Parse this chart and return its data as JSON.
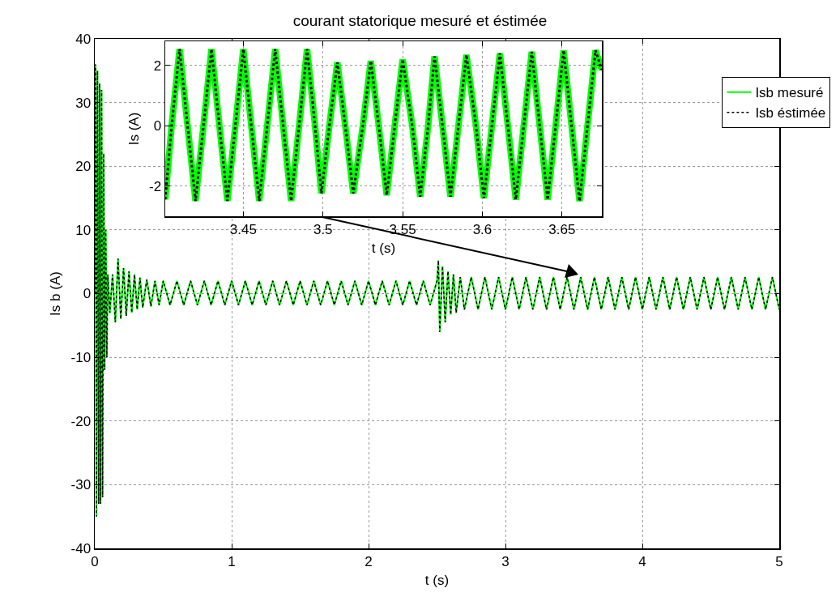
{
  "chart_data": [
    {
      "type": "line",
      "title": "courant statorique mesuré et éstimée",
      "xlabel": "t (s)",
      "ylabel": "Is b (A)",
      "x": [
        0,
        0.005,
        0.012,
        0.02,
        0.028,
        0.035,
        0.042,
        0.05,
        0.057,
        0.065,
        0.072,
        0.08,
        0.088,
        0.095,
        0.11,
        0.13,
        0.15,
        0.17,
        0.19,
        0.21,
        0.23,
        0.25,
        0.27,
        0.29,
        0.31,
        0.33,
        0.35,
        0.38,
        0.41,
        0.44,
        0.47,
        0.5,
        0.55,
        0.6,
        0.65,
        0.7,
        0.75,
        0.8,
        0.85,
        0.9,
        0.95,
        1,
        1.05,
        1.1,
        1.15,
        1.2,
        1.25,
        1.3,
        1.35,
        1.4,
        1.45,
        1.5,
        1.55,
        1.6,
        1.65,
        1.7,
        1.75,
        1.8,
        1.85,
        1.9,
        1.95,
        2,
        2.05,
        2.1,
        2.15,
        2.2,
        2.25,
        2.3,
        2.35,
        2.4,
        2.45,
        2.5,
        2.51,
        2.52,
        2.54,
        2.56,
        2.58,
        2.6,
        2.62,
        2.64,
        2.67,
        2.7,
        2.75,
        2.8,
        2.85,
        2.9,
        2.95,
        3,
        3.05,
        3.1,
        3.15,
        3.2,
        3.25,
        3.3,
        3.35,
        3.4,
        3.45,
        3.5,
        3.55,
        3.6,
        3.65,
        3.7,
        3.75,
        3.8,
        3.85,
        3.9,
        3.95,
        4,
        4.05,
        4.1,
        4.15,
        4.2,
        4.25,
        4.3,
        4.35,
        4.4,
        4.45,
        4.5,
        4.55,
        4.6,
        4.65,
        4.7,
        4.75,
        4.8,
        4.85,
        4.9,
        4.95,
        5
      ],
      "series": [
        {
          "name": "Isb mesuré",
          "color": "#00ff00",
          "line_style": "solid",
          "values": [
            0,
            36,
            -35,
            35,
            -33,
            33,
            -33,
            32,
            -32,
            22,
            -12,
            10,
            -10,
            3,
            -3,
            3,
            -4.5,
            5.5,
            -4,
            4,
            -3.5,
            3.5,
            -3,
            3,
            -2.5,
            2.5,
            -2.2,
            2.2,
            -2,
            2,
            -1.8,
            2,
            -1.8,
            2,
            -1.8,
            2,
            -1.8,
            2,
            -1.8,
            2,
            -1.8,
            2,
            -1.8,
            2,
            -1.8,
            2,
            -1.8,
            2,
            -1.8,
            2,
            -1.8,
            2,
            -1.8,
            2,
            -1.8,
            2,
            -1.8,
            2,
            -1.8,
            2,
            -1.8,
            2,
            -1.8,
            2,
            -1.8,
            2,
            -1.8,
            2,
            -1.8,
            2,
            -1.8,
            2,
            5.2,
            -6,
            4.3,
            -4.5,
            3.5,
            -3.3,
            3,
            -3,
            2.6,
            -2.5,
            2.6,
            -2.5,
            2.6,
            -2.5,
            2.6,
            -2.5,
            2.6,
            -2.5,
            2.6,
            -2.5,
            2.6,
            -2.5,
            2.6,
            -2.5,
            2.6,
            -2.5,
            2.6,
            -2.5,
            2.6,
            -2.5,
            2.6,
            -2.5,
            2.6,
            -2.5,
            2.6,
            -2.5,
            2.6,
            -2.5,
            2.6,
            -2.5,
            2.6,
            -2.5,
            2.6,
            -2.5,
            2.6,
            -2.5,
            2.6,
            -2.5,
            2.6,
            -2.5,
            2.6,
            -2.5,
            2.6,
            -2.5,
            2.6,
            -2.5
          ]
        },
        {
          "name": "Isb éstimée",
          "color": "#000000",
          "line_style": "dotted",
          "values": [
            0,
            36,
            -35,
            35,
            -33,
            33,
            -33,
            32,
            -32,
            22,
            -12,
            10,
            -10,
            3,
            -3,
            3,
            -4.5,
            5.5,
            -4,
            4,
            -3.5,
            3.5,
            -3,
            3,
            -2.5,
            2.5,
            -2.2,
            2.2,
            -2,
            2,
            -1.8,
            2,
            -1.8,
            2,
            -1.8,
            2,
            -1.8,
            2,
            -1.8,
            2,
            -1.8,
            2,
            -1.8,
            2,
            -1.8,
            2,
            -1.8,
            2,
            -1.8,
            2,
            -1.8,
            2,
            -1.8,
            2,
            -1.8,
            2,
            -1.8,
            2,
            -1.8,
            2,
            -1.8,
            2,
            -1.8,
            2,
            -1.8,
            2,
            -1.8,
            2,
            -1.8,
            2,
            -1.8,
            2,
            5.2,
            -6,
            4.3,
            -4.5,
            3.5,
            -3.3,
            3,
            -3,
            2.6,
            -2.5,
            2.6,
            -2.5,
            2.6,
            -2.5,
            2.6,
            -2.5,
            2.6,
            -2.5,
            2.6,
            -2.5,
            2.6,
            -2.5,
            2.6,
            -2.5,
            2.6,
            -2.5,
            2.6,
            -2.5,
            2.6,
            -2.5,
            2.6,
            -2.5,
            2.6,
            -2.5,
            2.6,
            -2.5,
            2.6,
            -2.5,
            2.6,
            -2.5,
            2.6,
            -2.5,
            2.6,
            -2.5,
            2.6,
            -2.5,
            2.6,
            -2.5,
            2.6,
            -2.5,
            2.6,
            -2.5,
            2.6,
            -2.5,
            2.6,
            -2.5
          ]
        }
      ],
      "xlim": [
        0,
        5
      ],
      "xticks": [
        0,
        1,
        2,
        3,
        4,
        5
      ],
      "ylim": [
        -40,
        40
      ],
      "yticks": [
        -40,
        -30,
        -20,
        -10,
        0,
        10,
        20,
        30,
        40
      ],
      "grid": true,
      "legend": "top right",
      "marker": "none"
    },
    {
      "type": "line",
      "xlabel": "t (s)",
      "ylabel": "Is (A)",
      "x": [
        3.401,
        3.405,
        3.41,
        3.415,
        3.42,
        3.425,
        3.43,
        3.435,
        3.44,
        3.445,
        3.45,
        3.455,
        3.46,
        3.465,
        3.47,
        3.475,
        3.48,
        3.485,
        3.49,
        3.495,
        3.499,
        3.504,
        3.509,
        3.514,
        3.519,
        3.525,
        3.53,
        3.535,
        3.54,
        3.545,
        3.55,
        3.556,
        3.561,
        3.566,
        3.57,
        3.575,
        3.58,
        3.585,
        3.59,
        3.596,
        3.601,
        3.606,
        3.611,
        3.616,
        3.621,
        3.626,
        3.631,
        3.636,
        3.641,
        3.646,
        3.651,
        3.656,
        3.661,
        3.666,
        3.671,
        3.675
      ],
      "series": [
        {
          "color": "#00ff00",
          "line_style": "solid",
          "values": [
            -2.44,
            0,
            2.54,
            0,
            -2.49,
            0,
            2.54,
            0,
            -2.49,
            0,
            2.54,
            0,
            -2.49,
            0,
            2.54,
            0,
            -2.49,
            0,
            2.54,
            0,
            -2.24,
            0,
            2.1,
            0,
            -2.24,
            0,
            2.15,
            0,
            -2.3,
            0,
            2.2,
            0,
            -2.35,
            0,
            2.3,
            0,
            -2.35,
            0,
            2.35,
            0,
            -2.4,
            0,
            2.4,
            0,
            -2.45,
            0,
            2.45,
            0,
            -2.45,
            0,
            2.5,
            0,
            -2.5,
            0,
            2.5,
            1.85
          ]
        },
        {
          "color": "#000000",
          "line_style": "dotted",
          "values": [
            -2.44,
            0,
            2.54,
            0,
            -2.49,
            0,
            2.54,
            0,
            -2.49,
            0,
            2.54,
            0,
            -2.49,
            0,
            2.54,
            0,
            -2.49,
            0,
            2.54,
            0,
            -2.24,
            0,
            2.1,
            0,
            -2.24,
            0,
            2.15,
            0,
            -2.3,
            0,
            2.2,
            0,
            -2.35,
            0,
            2.3,
            0,
            -2.35,
            0,
            2.35,
            0,
            -2.4,
            0,
            2.4,
            0,
            -2.45,
            0,
            2.45,
            0,
            -2.45,
            0,
            2.5,
            0,
            -2.5,
            0,
            2.5,
            1.85
          ]
        }
      ],
      "xlim": [
        3.401,
        3.675
      ],
      "xticks": [
        3.45,
        3.5,
        3.55,
        3.6,
        3.65
      ],
      "ylim": [
        -3,
        2.8
      ],
      "yticks": [
        -2,
        0,
        2
      ],
      "grid": true,
      "marker": "none"
    }
  ]
}
